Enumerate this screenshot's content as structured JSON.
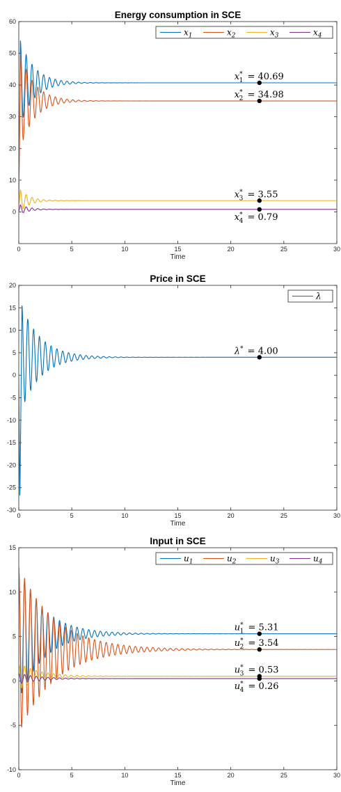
{
  "chart_data": [
    {
      "type": "line",
      "title": "Energy consumption in SCE",
      "xlabel": "Time",
      "ylabel": "",
      "xlim": [
        0,
        30
      ],
      "ylim": [
        -10,
        60
      ],
      "xticks": [
        0,
        5,
        10,
        15,
        20,
        25,
        30
      ],
      "yticks": [
        0,
        10,
        20,
        30,
        40,
        50,
        60
      ],
      "grid": false,
      "legend_position": "top-right",
      "legend_orientation": "horizontal",
      "series": [
        {
          "name": "x1",
          "label_base": "x",
          "label_sub": "1",
          "color": "#0072BD",
          "steady": 40.69,
          "peak": 54,
          "period": 0.55,
          "decay": 0.75
        },
        {
          "name": "x2",
          "label_base": "x",
          "label_sub": "2",
          "color": "#D95319",
          "steady": 34.98,
          "peak": 50,
          "period": 0.55,
          "decay": 0.75
        },
        {
          "name": "x3",
          "label_base": "x",
          "label_sub": "3",
          "color": "#EDB120",
          "steady": 3.55,
          "peak": 7,
          "period": 0.55,
          "decay": 1.1
        },
        {
          "name": "x4",
          "label_base": "x",
          "label_sub": "4",
          "color": "#7E2F8E",
          "steady": 0.79,
          "peak": 2.2,
          "period": 0.55,
          "decay": 1.1
        }
      ],
      "annotations": [
        {
          "text_base": "x",
          "text_sub": "1",
          "text_value": "= 40.69",
          "x": 22.7,
          "y": 40.69,
          "pos": "above"
        },
        {
          "text_base": "x",
          "text_sub": "2",
          "text_value": "= 34.98",
          "x": 22.7,
          "y": 34.98,
          "pos": "above"
        },
        {
          "text_base": "x",
          "text_sub": "3",
          "text_value": "= 3.55",
          "x": 22.7,
          "y": 3.55,
          "pos": "above"
        },
        {
          "text_base": "x",
          "text_sub": "4",
          "text_value": "= 0.79",
          "x": 22.7,
          "y": 0.79,
          "pos": "below"
        }
      ]
    },
    {
      "type": "line",
      "title": "Price in SCE",
      "xlabel": "Time",
      "ylabel": "",
      "xlim": [
        0,
        30
      ],
      "ylim": [
        -30,
        20
      ],
      "xticks": [
        0,
        5,
        10,
        15,
        20,
        25,
        30
      ],
      "yticks": [
        -30,
        -25,
        -20,
        -15,
        -10,
        -5,
        0,
        5,
        10,
        15,
        20
      ],
      "grid": false,
      "legend_position": "top-right",
      "legend_orientation": "horizontal",
      "series": [
        {
          "name": "λ",
          "label_base": "λ",
          "label_sub": "",
          "color": "#0072BD",
          "steady": 4.0,
          "trough": -28.5,
          "peak": 15.5,
          "period": 0.55,
          "decay": 0.55
        }
      ],
      "annotations": [
        {
          "text_base": "λ",
          "text_sub": "",
          "text_value": "= 4.00",
          "x": 22.7,
          "y": 4.0,
          "pos": "above"
        }
      ]
    },
    {
      "type": "line",
      "title": "Input in SCE",
      "xlabel": "Time",
      "ylabel": "",
      "xlim": [
        0,
        30
      ],
      "ylim": [
        -10,
        15
      ],
      "xticks": [
        0,
        5,
        10,
        15,
        20,
        25,
        30
      ],
      "yticks": [
        -10,
        -5,
        0,
        5,
        10,
        15
      ],
      "grid": false,
      "legend_position": "top-right",
      "legend_orientation": "horizontal",
      "series": [
        {
          "name": "u1",
          "label_base": "u",
          "label_sub": "1",
          "color": "#0072BD",
          "steady": 5.31,
          "amp": 7.5,
          "period": 0.55,
          "decay": 0.42
        },
        {
          "name": "u2",
          "label_base": "u",
          "label_sub": "2",
          "color": "#D95319",
          "steady": 3.54,
          "amp": 9.5,
          "period": 0.55,
          "decay": 0.3
        },
        {
          "name": "u3",
          "label_base": "u",
          "label_sub": "3",
          "color": "#EDB120",
          "steady": 0.53,
          "amp": 1.5,
          "period": 0.55,
          "decay": 0.5
        },
        {
          "name": "u4",
          "label_base": "u",
          "label_sub": "4",
          "color": "#7E2F8E",
          "steady": 0.26,
          "amp": 0.6,
          "period": 0.55,
          "decay": 0.5
        }
      ],
      "annotations": [
        {
          "text_base": "u",
          "text_sub": "1",
          "text_value": "= 5.31",
          "x": 22.7,
          "y": 5.31,
          "pos": "above"
        },
        {
          "text_base": "u",
          "text_sub": "2",
          "text_value": "= 3.54",
          "x": 22.7,
          "y": 3.54,
          "pos": "above"
        },
        {
          "text_base": "u",
          "text_sub": "3",
          "text_value": "= 0.53",
          "x": 22.7,
          "y": 0.53,
          "pos": "above"
        },
        {
          "text_base": "u",
          "text_sub": "4",
          "text_value": "= 0.26",
          "x": 22.7,
          "y": 0.26,
          "pos": "below"
        }
      ]
    }
  ]
}
